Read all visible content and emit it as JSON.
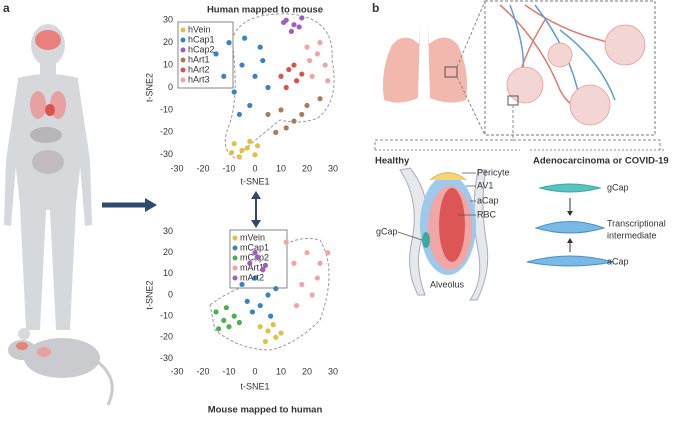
{
  "figure": {
    "panel_a": "a",
    "panel_b": "b"
  },
  "chart_data": [
    {
      "type": "scatter",
      "title": "Human mapped to mouse",
      "x_label": "t-SNE1",
      "y_label": "t-SNE2",
      "xlim": [
        -30,
        30
      ],
      "ylim": [
        -35,
        35
      ],
      "xticks": [
        -30,
        -20,
        -10,
        0,
        10,
        20,
        30
      ],
      "yticks": [
        -30,
        -20,
        -10,
        0,
        10,
        20,
        30
      ],
      "series": [
        {
          "name": "hVein",
          "color": "#e2c044",
          "x": [
            -8,
            -5,
            -2,
            0,
            -6,
            -3,
            -9,
            1
          ],
          "values": [
            -25,
            -28,
            -24,
            -30,
            -31,
            -27,
            -29,
            -26
          ]
        },
        {
          "name": "hCap1",
          "color": "#3b82c4",
          "x": [
            -15,
            -10,
            -5,
            0,
            3,
            -8,
            -2,
            5,
            -12,
            -4,
            2,
            -6
          ],
          "values": [
            15,
            20,
            10,
            5,
            12,
            -2,
            -8,
            0,
            5,
            22,
            18,
            -12
          ]
        },
        {
          "name": "hCap2",
          "color": "#a05cbf",
          "x": [
            12,
            15,
            18,
            14,
            17,
            11
          ],
          "values": [
            30,
            28,
            31,
            25,
            27,
            29
          ]
        },
        {
          "name": "hArt1",
          "color": "#a87c5c",
          "x": [
            5,
            10,
            15,
            20,
            25,
            12,
            18,
            8
          ],
          "values": [
            -12,
            -10,
            -15,
            -8,
            -5,
            -18,
            -12,
            -20
          ]
        },
        {
          "name": "hArt2",
          "color": "#e0504e",
          "x": [
            10,
            13,
            16,
            12,
            15,
            18
          ],
          "values": [
            5,
            8,
            3,
            0,
            10,
            6
          ]
        },
        {
          "name": "hArt3",
          "color": "#f0a4a4",
          "x": [
            20,
            24,
            27,
            22,
            25,
            28,
            21
          ],
          "values": [
            18,
            15,
            10,
            5,
            20,
            3,
            12
          ]
        }
      ]
    },
    {
      "type": "scatter",
      "title": "Mouse mapped to human",
      "x_label": "t-SNE1",
      "y_label": "t-SNE2",
      "xlim": [
        -30,
        30
      ],
      "ylim": [
        -35,
        35
      ],
      "xticks": [
        -30,
        -20,
        -10,
        0,
        10,
        20,
        30
      ],
      "yticks": [
        -30,
        -20,
        -10,
        0,
        10,
        20,
        30
      ],
      "series": [
        {
          "name": "mVein",
          "color": "#e2c044",
          "x": [
            2,
            5,
            8,
            4,
            7,
            10
          ],
          "values": [
            -15,
            -17,
            -20,
            -22,
            -14,
            -18
          ]
        },
        {
          "name": "mCap1",
          "color": "#3b82c4",
          "x": [
            -5,
            0,
            5,
            2,
            -3,
            8,
            3,
            -1,
            6
          ],
          "values": [
            5,
            8,
            0,
            -5,
            -3,
            3,
            12,
            -8,
            -10
          ]
        },
        {
          "name": "mCap2",
          "color": "#4caf50",
          "x": [
            -15,
            -12,
            -8,
            -10,
            -14,
            -6,
            -11
          ],
          "values": [
            -8,
            -12,
            -10,
            -15,
            -16,
            -13,
            -6
          ]
        },
        {
          "name": "mArt1",
          "color": "#f0a4a4",
          "x": [
            12,
            15,
            20,
            25,
            18,
            22,
            28,
            16,
            24
          ],
          "values": [
            25,
            15,
            20,
            15,
            5,
            0,
            20,
            -5,
            8
          ]
        },
        {
          "name": "mArt2",
          "color": "#a05cbf",
          "x": [
            -2,
            1,
            4,
            0,
            3
          ],
          "values": [
            15,
            18,
            14,
            20,
            12
          ]
        }
      ]
    }
  ],
  "healthy": {
    "title": "Healthy",
    "pericyte": "Pericyte",
    "av1": "AV1",
    "acap": "aCap",
    "rbc": "RBC",
    "gcap": "gCap",
    "alveolus": "Alveolus"
  },
  "disease": {
    "title": "Adenocarcinoma or COVID-19",
    "gcap": "gCap",
    "intermediate_line1": "Transcriptional",
    "intermediate_line2": "intermediate",
    "acap": "aCap"
  }
}
